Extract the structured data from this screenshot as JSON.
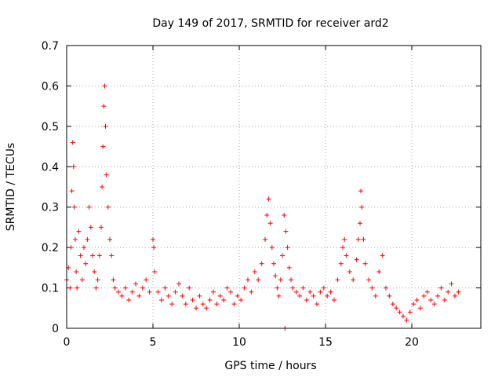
{
  "chart_data": {
    "type": "scatter",
    "title": "Day 149 of 2017, SRMTID for receiver ard2",
    "xlabel": "GPS time / hours",
    "ylabel": "SRMTID / TECUs",
    "xlim": [
      0,
      24
    ],
    "ylim": [
      0,
      0.7
    ],
    "xticks": [
      "0",
      "5",
      "10",
      "15",
      "20"
    ],
    "yticks": [
      "0",
      "0.1",
      "0.2",
      "0.3",
      "0.4",
      "0.5",
      "0.6",
      "0.7"
    ],
    "grid": true,
    "marker": "+",
    "series": [
      {
        "name": "SRMTID ard2",
        "color": "#ff0000",
        "x": [
          0.0,
          0.1,
          0.2,
          0.25,
          0.3,
          0.35,
          0.4,
          0.45,
          0.5,
          0.55,
          0.6,
          0.7,
          0.8,
          0.9,
          1.0,
          1.1,
          1.2,
          1.3,
          1.4,
          1.5,
          1.6,
          1.7,
          1.8,
          1.9,
          2.0,
          2.05,
          2.1,
          2.15,
          2.2,
          2.25,
          2.3,
          2.4,
          2.5,
          2.6,
          2.7,
          2.8,
          3.0,
          3.2,
          3.4,
          3.6,
          3.8,
          4.0,
          4.2,
          4.4,
          4.6,
          4.8,
          5.0,
          5.05,
          5.1,
          5.3,
          5.5,
          5.7,
          5.9,
          6.1,
          6.3,
          6.5,
          6.7,
          6.9,
          7.1,
          7.3,
          7.5,
          7.7,
          7.9,
          8.1,
          8.3,
          8.5,
          8.7,
          8.9,
          9.1,
          9.3,
          9.5,
          9.7,
          9.9,
          10.1,
          10.3,
          10.5,
          10.7,
          10.9,
          11.1,
          11.3,
          11.5,
          11.6,
          11.7,
          11.8,
          11.9,
          12.0,
          12.1,
          12.2,
          12.3,
          12.4,
          12.5,
          12.6,
          12.65,
          12.7,
          12.8,
          12.9,
          13.0,
          13.1,
          13.3,
          13.5,
          13.7,
          13.9,
          14.1,
          14.3,
          14.5,
          14.7,
          14.9,
          15.1,
          15.3,
          15.5,
          15.7,
          15.9,
          16.0,
          16.1,
          16.2,
          16.4,
          16.6,
          16.8,
          16.9,
          17.0,
          17.05,
          17.1,
          17.2,
          17.3,
          17.5,
          17.7,
          17.9,
          18.1,
          18.3,
          18.5,
          18.7,
          18.9,
          19.1,
          19.3,
          19.5,
          19.7,
          19.9,
          20.1,
          20.3,
          20.5,
          20.7,
          20.9,
          21.1,
          21.3,
          21.5,
          21.7,
          21.9,
          22.1,
          22.3,
          22.5,
          22.7
        ],
        "y": [
          0.12,
          0.15,
          0.1,
          0.2,
          0.34,
          0.46,
          0.4,
          0.3,
          0.22,
          0.14,
          0.1,
          0.24,
          0.18,
          0.12,
          0.2,
          0.16,
          0.22,
          0.3,
          0.25,
          0.18,
          0.14,
          0.1,
          0.12,
          0.18,
          0.25,
          0.35,
          0.45,
          0.55,
          0.6,
          0.5,
          0.38,
          0.3,
          0.22,
          0.18,
          0.12,
          0.1,
          0.09,
          0.08,
          0.1,
          0.07,
          0.09,
          0.11,
          0.08,
          0.1,
          0.12,
          0.09,
          0.22,
          0.2,
          0.14,
          0.09,
          0.07,
          0.1,
          0.08,
          0.06,
          0.09,
          0.11,
          0.08,
          0.06,
          0.1,
          0.07,
          0.05,
          0.08,
          0.06,
          0.05,
          0.07,
          0.09,
          0.06,
          0.08,
          0.07,
          0.1,
          0.09,
          0.06,
          0.08,
          0.07,
          0.1,
          0.12,
          0.09,
          0.14,
          0.12,
          0.16,
          0.22,
          0.28,
          0.32,
          0.26,
          0.2,
          0.16,
          0.13,
          0.1,
          0.08,
          0.12,
          0.18,
          0.28,
          0.0,
          0.24,
          0.2,
          0.15,
          0.12,
          0.1,
          0.09,
          0.08,
          0.1,
          0.07,
          0.09,
          0.08,
          0.06,
          0.09,
          0.1,
          0.08,
          0.09,
          0.07,
          0.12,
          0.16,
          0.2,
          0.22,
          0.18,
          0.14,
          0.12,
          0.17,
          0.22,
          0.26,
          0.34,
          0.3,
          0.22,
          0.16,
          0.12,
          0.1,
          0.08,
          0.14,
          0.18,
          0.1,
          0.08,
          0.06,
          0.05,
          0.04,
          0.03,
          0.02,
          0.04,
          0.06,
          0.07,
          0.05,
          0.08,
          0.09,
          0.07,
          0.06,
          0.08,
          0.1,
          0.07,
          0.09,
          0.11,
          0.08,
          0.09
        ]
      }
    ]
  }
}
